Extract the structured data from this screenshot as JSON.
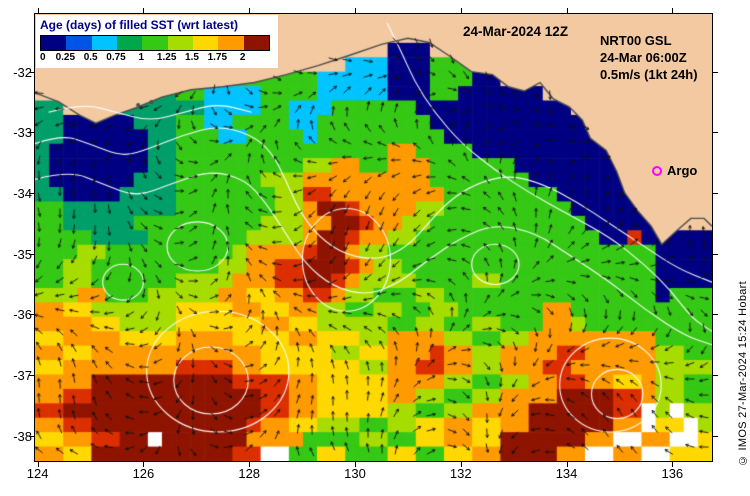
{
  "colorbar": {
    "title": "Age (days) of filled SST (wrt latest)",
    "title_color": "#00008b",
    "tick_labels": [
      "0",
      "0.25",
      "0.5",
      "0.75",
      "1",
      "1.25",
      "1.5",
      "1.75",
      "2"
    ],
    "tick_values": [
      0,
      0.25,
      0.5,
      0.75,
      1,
      1.25,
      1.5,
      1.75,
      2
    ],
    "segment_colors": [
      "#000082",
      "#0055e6",
      "#00c3ff",
      "#00a84b",
      "#35c814",
      "#a6dc00",
      "#ffd800",
      "#ff9a00",
      "#8f1400"
    ]
  },
  "annotations": {
    "datetime": "24-Mar-2024 12Z",
    "model": "NRT00 GSL",
    "model_time": "24-Mar 06:00Z",
    "vector_scale": "0.5m/s (1kt 24h)",
    "argo_label": "Argo",
    "copyright": "© IMOS 27-Mar-2024 15:24 Hobart"
  },
  "axes": {
    "x_ticks": [
      "124",
      "126",
      "128",
      "130",
      "132",
      "134",
      "136"
    ],
    "x_values": [
      124,
      126,
      128,
      130,
      132,
      134,
      136
    ],
    "y_ticks": [
      "-32",
      "-33",
      "-34",
      "-35",
      "-36",
      "-37",
      "-38"
    ],
    "y_values": [
      -32,
      -33,
      -34,
      -35,
      -36,
      -37,
      -38
    ],
    "lon_min": 123.95,
    "lon_max": 136.75,
    "lat_top": -31.05,
    "lat_bottom": -38.42
  },
  "chart_data": {
    "type": "heatmap",
    "title": "Age (days) of filled SST (wrt latest)",
    "units": "days",
    "value_range": [
      0,
      2
    ],
    "x_range": [
      123.95,
      136.75
    ],
    "y_range": [
      -38.42,
      -31.05
    ],
    "legend_position": "top-left",
    "field": {
      "palette": {
        "N": "#000082",
        "B": "#0055e6",
        "C": "#00c3ff",
        "T": "#009e68",
        "G": "#35c814",
        "Y": "#a6dc00",
        "y": "#ffd800",
        "o": "#ff9a00",
        "r": "#dc2f00",
        "R": "#8f1400",
        "L": "#f3c9a1",
        ".": "#ffffff"
      },
      "palette_meaning": {
        "N": "0-0.25 days",
        "B": "0.25-0.5",
        "C": "0.5-0.75",
        "T": "0.75-1",
        "G": "1-1.25",
        "Y": "1.25-1.5",
        "y": "1.5-1.75",
        "o": "1.75-2",
        "r": "2+",
        "R": "2+ (oldest)",
        "L": "land",
        ".": "no data"
      },
      "rows": [
        "LLLLLLLLLLLLLLLLLLLLLLLLLLLLLLLLLLLLLLLLLLLLLLLL",
        "LLLLLLLLLLLLLLLLLLLLLLLLLLLLLLLLLLLLLLLLLLLLLLLL",
        "LLLLLLLLLLLLLLLLLLLLLLLLLNNNLLLLLLLLLLLLLLLLLLLL",
        "LLLLLLLLLLLLLLLLLLLLLLCCCNNNGGGNNLLLLLLLLLLLLLLL",
        "LLLLLLLLLLLLLLGGGGGGCCCCCNNNGGGNNLLLLLLLLLLLLLLL",
        "LLLLLLTTTTGGCCCCGGGGCCCCCNNNGGNNNNNNLLLLLLLLLLLL",
        "TTLLLLTTTTTTCCCCGGCCCGGGGGGNNNNNNNNNNNLLLLLLLLLL",
        "TTNNNNNTTTGGCCGGGGCCGGGGGGGGNNNNNNNNNNNLLLLLLLLL",
        "TTNNNNNNTTGGGCCGGGGCGGGGGGGGGNNNNNNNNNNNLLLLLLLL",
        "TNNNNNNNTTGGGGGGGGGGGGGGGooGGGGNNNNNNNNNNLLLLLLL",
        "TNNNNNNNTTGGGGGGGGGYYooGGoooGGGGGGNNNNNNNNLLLLLL",
        "TNNNNNNTTTGGGGGGYYYoooooooooGGGGGGGNNNNNNNNLLLLL",
        "TTNNNNTTTTGGGGGGGYYrrooooooooGGGGGGGGNNNNNNNLLLL",
        "GGTTTTTTTTGGGGGGGYYoRRrooooYYGGGGGGGGGNNNNNNLLLL",
        "GGTTTTTGGGGGGGGGYYYooRRrooYYGGGGGGGGGGGNNNNNLLLL",
        "GGGGTTTTGGGGGGGYYYYoRRrooYYGGGGGGGGGGGGGNNrNNNNN",
        "GGGYYGGGGGGGGGYoooorRRoYYGGGGGGGGGGGGGGGGGGGNNNN",
        "GGYYGGGGGGGGGYYoorrRRRroYYGGGGGGGGGGGGGGGGGGNNNN",
        "GGYYGGGGGGYYYYooorrRRroYYYYGGGGYYGGGGGGGGGGGNNNN",
        "YYYooGGGYYYYYooyyoorroYYGGGYYGGGGGGGGGGGGGGGNGGG",
        "ooyyYYYYYYyyyyooyyooYYGGYYGGYYGGGGGGooGGGGGGGGGG",
        "ooooyyYYYYyyyyyyooyyYYYYYGGYYGGYYGGGooYGGGGGGGGG",
        "yyooooyyyyooooyyyyooyyyYYooooYYGGYYoooooooooGGGG",
        "ooyyooooooooooooyyyyyYYyyooorooYYoooorroooooYYGG",
        "yyoooooooorrrrooyyyyyyyYYoorrooYYooorrooooooYYYY",
        "ooooRRRRRRRRRRrrrrooyyyyyooooYYGGYYoorrooyyoYYGG",
        "oorrRRRRRRRRRRRRrrooyyyyyooYYGGYYooooRRRRrroYYGG",
        "rrRRRRRRRRRRRRRRrrooyyyyyYYGGYYooooRRRRRRrr.Y.YY",
        "oorrRRRRRRRRRRRrooyyYYYGGYYyyooyyooRRRRRRoo.yy.Y",
        "yyoorrRR.RRRRRRooooGGGGYYGGyyooyyRRRRRRoo..oo..y",
        "ooyyRRRRRRRRRRrr..GGyyGGGyyGGyyooRRRRoo..oo..yyy"
      ]
    },
    "land": {
      "fill": "#f3c9a1",
      "stroke": "#4d4d4d",
      "coast": [
        [
          123.95,
          -32.35
        ],
        [
          124.4,
          -32.5
        ],
        [
          124.8,
          -32.72
        ],
        [
          125.1,
          -32.85
        ],
        [
          125.45,
          -32.72
        ],
        [
          125.85,
          -32.6
        ],
        [
          126.35,
          -32.42
        ],
        [
          126.9,
          -32.3
        ],
        [
          127.5,
          -32.25
        ],
        [
          128.1,
          -32.18
        ],
        [
          128.7,
          -32.05
        ],
        [
          129.3,
          -31.9
        ],
        [
          129.9,
          -31.73
        ],
        [
          130.5,
          -31.55
        ],
        [
          131.0,
          -31.45
        ],
        [
          131.4,
          -31.52
        ],
        [
          131.8,
          -31.75
        ],
        [
          132.2,
          -32.0
        ],
        [
          132.6,
          -32.05
        ],
        [
          132.9,
          -32.25
        ],
        [
          133.2,
          -32.32
        ],
        [
          133.5,
          -32.18
        ],
        [
          133.75,
          -32.45
        ],
        [
          134.05,
          -32.58
        ],
        [
          134.3,
          -32.8
        ],
        [
          134.45,
          -33.1
        ],
        [
          134.75,
          -33.3
        ],
        [
          134.95,
          -33.65
        ],
        [
          135.1,
          -34.0
        ],
        [
          135.35,
          -34.3
        ],
        [
          135.6,
          -34.55
        ],
        [
          135.8,
          -34.85
        ],
        [
          136.05,
          -34.65
        ],
        [
          136.35,
          -34.42
        ],
        [
          136.6,
          -34.42
        ],
        [
          136.75,
          -34.55
        ]
      ],
      "islands": [
        [
          125.9,
          -32.55
        ],
        [
          126.15,
          -32.5
        ]
      ]
    },
    "contours": {
      "color": "#ffffff",
      "paths": [
        [
          [
            0.0,
            0.29
          ],
          [
            0.04,
            0.27
          ],
          [
            0.08,
            0.29
          ],
          [
            0.13,
            0.32
          ],
          [
            0.17,
            0.3
          ],
          [
            0.22,
            0.27
          ],
          [
            0.27,
            0.25
          ],
          [
            0.32,
            0.27
          ],
          [
            0.35,
            0.31
          ],
          [
            0.37,
            0.37
          ],
          [
            0.39,
            0.44
          ],
          [
            0.42,
            0.5
          ],
          [
            0.46,
            0.54
          ],
          [
            0.51,
            0.55
          ],
          [
            0.55,
            0.52
          ],
          [
            0.58,
            0.47
          ],
          [
            0.61,
            0.42
          ],
          [
            0.65,
            0.38
          ],
          [
            0.7,
            0.36
          ],
          [
            0.75,
            0.38
          ],
          [
            0.8,
            0.42
          ],
          [
            0.85,
            0.47
          ],
          [
            0.9,
            0.52
          ],
          [
            0.95,
            0.57
          ],
          [
            1.0,
            0.6
          ]
        ],
        [
          [
            0.0,
            0.37
          ],
          [
            0.05,
            0.35
          ],
          [
            0.1,
            0.38
          ],
          [
            0.15,
            0.41
          ],
          [
            0.2,
            0.38
          ],
          [
            0.26,
            0.35
          ],
          [
            0.31,
            0.37
          ],
          [
            0.34,
            0.42
          ],
          [
            0.37,
            0.49
          ],
          [
            0.4,
            0.56
          ],
          [
            0.44,
            0.61
          ],
          [
            0.49,
            0.63
          ],
          [
            0.54,
            0.6
          ],
          [
            0.58,
            0.55
          ],
          [
            0.63,
            0.5
          ],
          [
            0.68,
            0.47
          ],
          [
            0.74,
            0.49
          ],
          [
            0.79,
            0.54
          ],
          [
            0.85,
            0.6
          ],
          [
            0.9,
            0.66
          ],
          [
            0.96,
            0.72
          ],
          [
            1.0,
            0.74
          ]
        ],
        [
          [
            0.52,
            0.02
          ],
          [
            0.54,
            0.08
          ],
          [
            0.56,
            0.15
          ],
          [
            0.59,
            0.22
          ],
          [
            0.63,
            0.29
          ],
          [
            0.68,
            0.35
          ],
          [
            0.73,
            0.4
          ],
          [
            0.79,
            0.45
          ],
          [
            0.85,
            0.5
          ],
          [
            0.9,
            0.56
          ],
          [
            0.94,
            0.62
          ],
          [
            0.97,
            0.68
          ],
          [
            1.0,
            0.71
          ]
        ],
        [
          [
            0.02,
            0.22
          ],
          [
            0.07,
            0.2
          ],
          [
            0.12,
            0.22
          ],
          [
            0.17,
            0.24
          ],
          [
            0.22,
            0.22
          ],
          [
            0.27,
            0.2
          ],
          [
            0.32,
            0.22
          ]
        ]
      ],
      "loops": [
        {
          "cx": 0.46,
          "cy": 0.55,
          "rx": 0.065,
          "ry": 0.115
        },
        {
          "cx": 0.27,
          "cy": 0.8,
          "rx": 0.105,
          "ry": 0.135
        },
        {
          "cx": 0.26,
          "cy": 0.82,
          "rx": 0.055,
          "ry": 0.075
        },
        {
          "cx": 0.85,
          "cy": 0.83,
          "rx": 0.075,
          "ry": 0.105
        },
        {
          "cx": 0.86,
          "cy": 0.85,
          "rx": 0.038,
          "ry": 0.055
        },
        {
          "cx": 0.24,
          "cy": 0.52,
          "rx": 0.045,
          "ry": 0.055
        },
        {
          "cx": 0.68,
          "cy": 0.56,
          "rx": 0.035,
          "ry": 0.045
        },
        {
          "cx": 0.13,
          "cy": 0.6,
          "rx": 0.03,
          "ry": 0.04
        }
      ]
    },
    "arrows": {
      "spacing": 17,
      "length": 9,
      "color": "#101010"
    },
    "argo": {
      "lon": 135.66,
      "lat": -33.6,
      "color": "#ff00ff"
    }
  }
}
